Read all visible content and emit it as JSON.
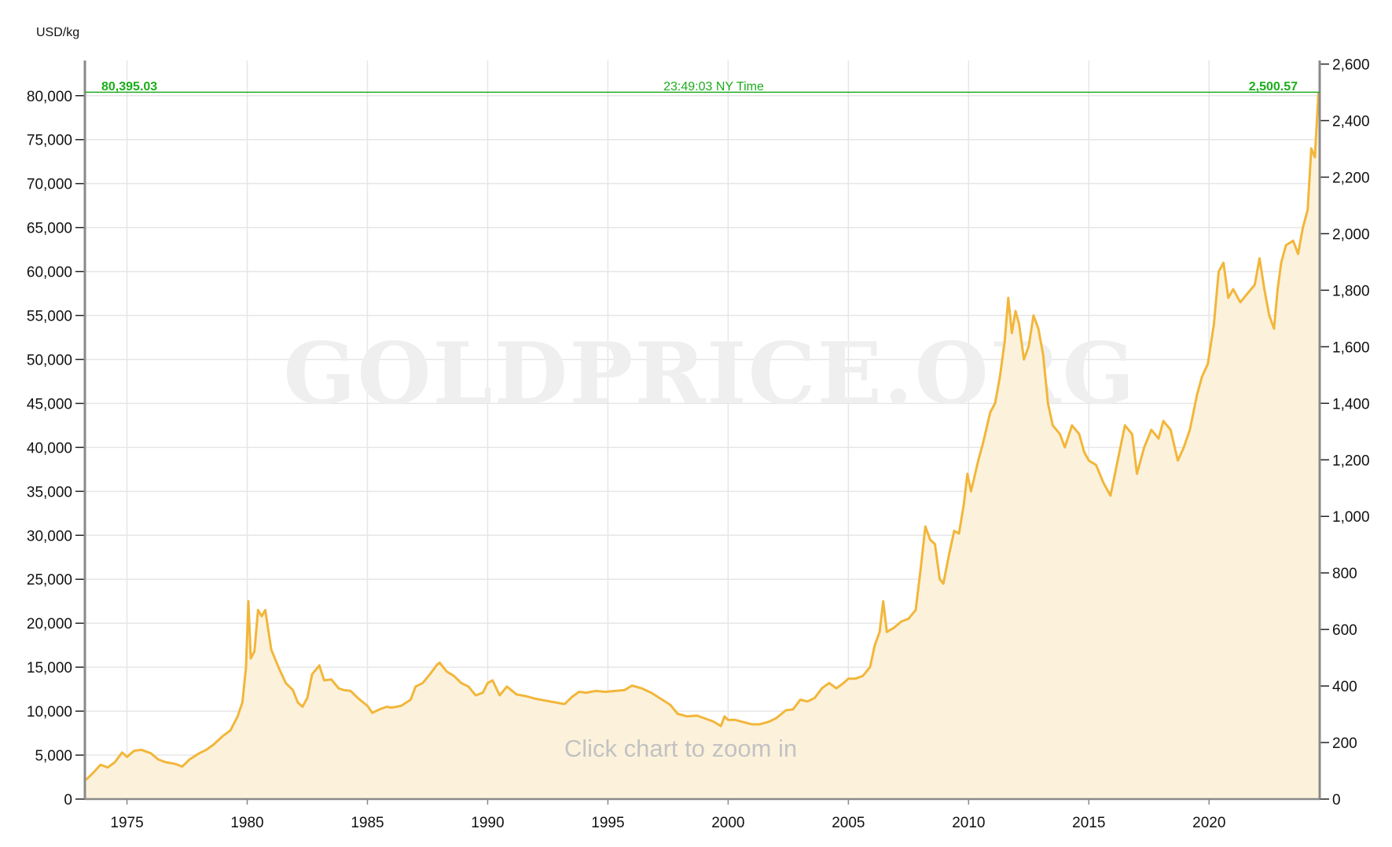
{
  "chart_data": {
    "type": "area",
    "unit_label": "USD/kg",
    "watermark": "GOLDPRICE.ORG",
    "zoom_hint": "Click chart to zoom in",
    "current": {
      "value_left": "80,395.03",
      "time": "23:49:03 NY Time",
      "value_right": "2,500.57",
      "y": 80395.03
    },
    "xlim": [
      1973.25,
      2024.6
    ],
    "ylim": [
      0,
      84000
    ],
    "y2lim": [
      0,
      2612.65
    ],
    "x_ticks": [
      1975,
      1980,
      1985,
      1990,
      1995,
      2000,
      2005,
      2010,
      2015,
      2020
    ],
    "x_tick_labels": [
      "1975",
      "1980",
      "1985",
      "1990",
      "1995",
      "2000",
      "2005",
      "2010",
      "2015",
      "2020"
    ],
    "y_ticks": [
      0,
      5000,
      10000,
      15000,
      20000,
      25000,
      30000,
      35000,
      40000,
      45000,
      50000,
      55000,
      60000,
      65000,
      70000,
      75000,
      80000
    ],
    "y_tick_labels": [
      "0",
      "5,000",
      "10,000",
      "15,000",
      "20,000",
      "25,000",
      "30,000",
      "35,000",
      "40,000",
      "45,000",
      "50,000",
      "55,000",
      "60,000",
      "65,000",
      "70,000",
      "75,000",
      "80,000"
    ],
    "y2_ticks": [
      0,
      200,
      400,
      600,
      800,
      1000,
      1200,
      1400,
      1600,
      1800,
      2000,
      2200,
      2400,
      2600
    ],
    "y2_tick_labels": [
      "0",
      "200",
      "400",
      "600",
      "800",
      "1,000",
      "1,200",
      "1,400",
      "1,600",
      "1,800",
      "2,000",
      "2,200",
      "2,400",
      "2,600"
    ],
    "grid": true,
    "colors": {
      "line": "#f2b63a",
      "fill": "#fcf2dc",
      "grid": "#e6e6e6",
      "axis": "#8a8a8a",
      "current": "#22aa22"
    },
    "series": [
      {
        "points": [
          [
            1973.3,
            2200
          ],
          [
            1973.6,
            3000
          ],
          [
            1973.9,
            3900
          ],
          [
            1974.2,
            3600
          ],
          [
            1974.5,
            4200
          ],
          [
            1974.8,
            5300
          ],
          [
            1975.0,
            4800
          ],
          [
            1975.3,
            5500
          ],
          [
            1975.6,
            5600
          ],
          [
            1976.0,
            5200
          ],
          [
            1976.3,
            4500
          ],
          [
            1976.6,
            4200
          ],
          [
            1977.0,
            4000
          ],
          [
            1977.3,
            3700
          ],
          [
            1977.6,
            4500
          ],
          [
            1978.0,
            5200
          ],
          [
            1978.3,
            5600
          ],
          [
            1978.6,
            6200
          ],
          [
            1979.0,
            7200
          ],
          [
            1979.3,
            7800
          ],
          [
            1979.6,
            9400
          ],
          [
            1979.8,
            11000
          ],
          [
            1979.95,
            15000
          ],
          [
            1980.05,
            22500
          ],
          [
            1980.15,
            16000
          ],
          [
            1980.3,
            16800
          ],
          [
            1980.45,
            21500
          ],
          [
            1980.6,
            20800
          ],
          [
            1980.75,
            21500
          ],
          [
            1981.0,
            17000
          ],
          [
            1981.3,
            15000
          ],
          [
            1981.6,
            13200
          ],
          [
            1981.9,
            12400
          ],
          [
            1982.1,
            11000
          ],
          [
            1982.3,
            10500
          ],
          [
            1982.5,
            11500
          ],
          [
            1982.7,
            14200
          ],
          [
            1983.0,
            15200
          ],
          [
            1983.2,
            13500
          ],
          [
            1983.5,
            13600
          ],
          [
            1983.8,
            12600
          ],
          [
            1984.0,
            12400
          ],
          [
            1984.3,
            12300
          ],
          [
            1984.6,
            11500
          ],
          [
            1985.0,
            10600
          ],
          [
            1985.2,
            9800
          ],
          [
            1985.5,
            10200
          ],
          [
            1985.8,
            10500
          ],
          [
            1986.0,
            10400
          ],
          [
            1986.4,
            10600
          ],
          [
            1986.8,
            11300
          ],
          [
            1987.0,
            12800
          ],
          [
            1987.3,
            13200
          ],
          [
            1987.6,
            14200
          ],
          [
            1987.9,
            15300
          ],
          [
            1988.0,
            15500
          ],
          [
            1988.3,
            14500
          ],
          [
            1988.6,
            14000
          ],
          [
            1988.9,
            13200
          ],
          [
            1989.2,
            12800
          ],
          [
            1989.5,
            11800
          ],
          [
            1989.8,
            12100
          ],
          [
            1990.0,
            13200
          ],
          [
            1990.2,
            13500
          ],
          [
            1990.5,
            11800
          ],
          [
            1990.8,
            12800
          ],
          [
            1991.2,
            11900
          ],
          [
            1991.6,
            11700
          ],
          [
            1992.0,
            11400
          ],
          [
            1992.4,
            11200
          ],
          [
            1992.8,
            11000
          ],
          [
            1993.2,
            10800
          ],
          [
            1993.5,
            11600
          ],
          [
            1993.8,
            12200
          ],
          [
            1994.1,
            12100
          ],
          [
            1994.5,
            12300
          ],
          [
            1994.9,
            12200
          ],
          [
            1995.3,
            12300
          ],
          [
            1995.7,
            12400
          ],
          [
            1996.0,
            12900
          ],
          [
            1996.4,
            12600
          ],
          [
            1996.8,
            12100
          ],
          [
            1997.2,
            11400
          ],
          [
            1997.6,
            10700
          ],
          [
            1997.9,
            9700
          ],
          [
            1998.3,
            9400
          ],
          [
            1998.7,
            9500
          ],
          [
            1999.0,
            9200
          ],
          [
            1999.4,
            8800
          ],
          [
            1999.7,
            8300
          ],
          [
            1999.85,
            9400
          ],
          [
            2000.0,
            9000
          ],
          [
            2000.3,
            9000
          ],
          [
            2000.7,
            8700
          ],
          [
            2001.0,
            8500
          ],
          [
            2001.3,
            8500
          ],
          [
            2001.7,
            8800
          ],
          [
            2002.0,
            9200
          ],
          [
            2002.4,
            10100
          ],
          [
            2002.7,
            10200
          ],
          [
            2003.0,
            11300
          ],
          [
            2003.3,
            11100
          ],
          [
            2003.6,
            11500
          ],
          [
            2003.9,
            12600
          ],
          [
            2004.2,
            13200
          ],
          [
            2004.5,
            12600
          ],
          [
            2004.8,
            13200
          ],
          [
            2005.0,
            13700
          ],
          [
            2005.3,
            13700
          ],
          [
            2005.6,
            14000
          ],
          [
            2005.9,
            15000
          ],
          [
            2006.1,
            17500
          ],
          [
            2006.3,
            19000
          ],
          [
            2006.45,
            22500
          ],
          [
            2006.6,
            19000
          ],
          [
            2006.9,
            19500
          ],
          [
            2007.2,
            20200
          ],
          [
            2007.5,
            20500
          ],
          [
            2007.8,
            21500
          ],
          [
            2008.0,
            26000
          ],
          [
            2008.2,
            31000
          ],
          [
            2008.4,
            29500
          ],
          [
            2008.6,
            29000
          ],
          [
            2008.8,
            25000
          ],
          [
            2008.95,
            24500
          ],
          [
            2009.2,
            28000
          ],
          [
            2009.4,
            30500
          ],
          [
            2009.6,
            30200
          ],
          [
            2009.8,
            33500
          ],
          [
            2009.95,
            37000
          ],
          [
            2010.1,
            35000
          ],
          [
            2010.4,
            38500
          ],
          [
            2010.6,
            40500
          ],
          [
            2010.9,
            44000
          ],
          [
            2011.1,
            45000
          ],
          [
            2011.3,
            48000
          ],
          [
            2011.5,
            52000
          ],
          [
            2011.65,
            57000
          ],
          [
            2011.8,
            53000
          ],
          [
            2011.95,
            55500
          ],
          [
            2012.1,
            54000
          ],
          [
            2012.3,
            50000
          ],
          [
            2012.5,
            51500
          ],
          [
            2012.7,
            55000
          ],
          [
            2012.9,
            53500
          ],
          [
            2013.1,
            50500
          ],
          [
            2013.3,
            45000
          ],
          [
            2013.5,
            42500
          ],
          [
            2013.8,
            41500
          ],
          [
            2014.0,
            40000
          ],
          [
            2014.3,
            42500
          ],
          [
            2014.6,
            41500
          ],
          [
            2014.8,
            39500
          ],
          [
            2015.0,
            38500
          ],
          [
            2015.3,
            38000
          ],
          [
            2015.6,
            36000
          ],
          [
            2015.9,
            34500
          ],
          [
            2016.2,
            38500
          ],
          [
            2016.5,
            42500
          ],
          [
            2016.8,
            41500
          ],
          [
            2017.0,
            37000
          ],
          [
            2017.3,
            40000
          ],
          [
            2017.6,
            42000
          ],
          [
            2017.9,
            41000
          ],
          [
            2018.1,
            43000
          ],
          [
            2018.4,
            42000
          ],
          [
            2018.7,
            38500
          ],
          [
            2018.95,
            40000
          ],
          [
            2019.2,
            42000
          ],
          [
            2019.5,
            46000
          ],
          [
            2019.7,
            48000
          ],
          [
            2019.95,
            49500
          ],
          [
            2020.2,
            54000
          ],
          [
            2020.4,
            60000
          ],
          [
            2020.6,
            61000
          ],
          [
            2020.8,
            57000
          ],
          [
            2021.0,
            58000
          ],
          [
            2021.3,
            56500
          ],
          [
            2021.6,
            57500
          ],
          [
            2021.9,
            58500
          ],
          [
            2022.1,
            61500
          ],
          [
            2022.3,
            58000
          ],
          [
            2022.5,
            55000
          ],
          [
            2022.7,
            53500
          ],
          [
            2022.85,
            58000
          ],
          [
            2023.0,
            61000
          ],
          [
            2023.2,
            63000
          ],
          [
            2023.5,
            63500
          ],
          [
            2023.7,
            62000
          ],
          [
            2023.9,
            65000
          ],
          [
            2024.1,
            67000
          ],
          [
            2024.25,
            74000
          ],
          [
            2024.4,
            73000
          ],
          [
            2024.55,
            80395.03
          ]
        ]
      }
    ]
  }
}
